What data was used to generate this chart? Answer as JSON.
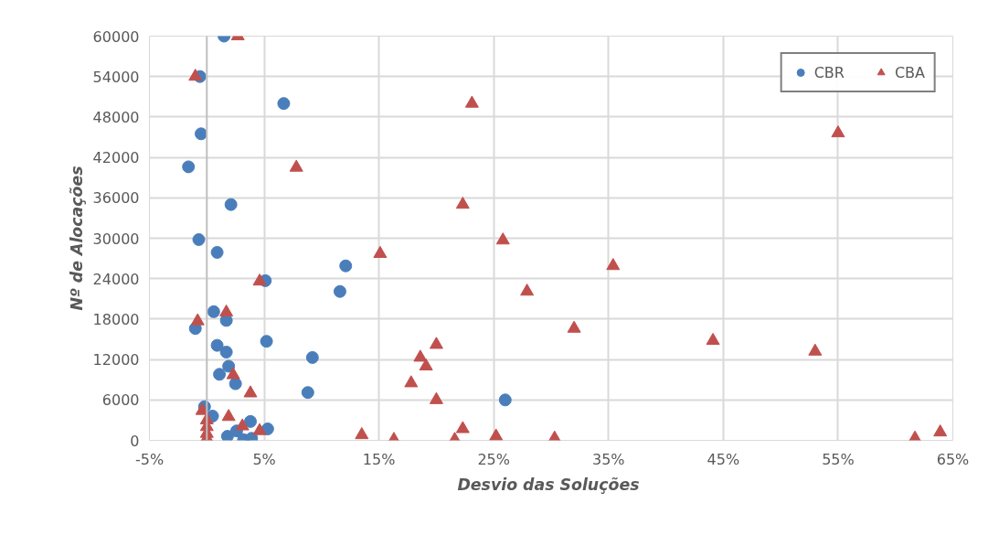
{
  "chart_data": {
    "type": "scatter",
    "xlabel": "Desvio  das Soluções",
    "ylabel": "Nº de Alocações",
    "xlim": [
      -5,
      65
    ],
    "ylim": [
      0,
      60000
    ],
    "xticks": [
      {
        "value": -5,
        "label": "-5%"
      },
      {
        "value": 5,
        "label": "5%"
      },
      {
        "value": 15,
        "label": "15%"
      },
      {
        "value": 25,
        "label": "25%"
      },
      {
        "value": 35,
        "label": "35%"
      },
      {
        "value": 45,
        "label": "45%"
      },
      {
        "value": 55,
        "label": "55%"
      },
      {
        "value": 65,
        "label": "65%"
      }
    ],
    "yticks": [
      0,
      6000,
      12000,
      18000,
      24000,
      30000,
      36000,
      42000,
      48000,
      54000,
      60000
    ],
    "grid": true,
    "legend": "top right",
    "series": [
      {
        "name": "CBR",
        "color": "#4a7ebb",
        "marker": "circle",
        "x": [
          1.5,
          -0.6,
          6.7,
          -0.5,
          -1.6,
          2.1,
          -0.7,
          0.9,
          12.1,
          5.1,
          11.6,
          0.6,
          1.7,
          -1.0,
          5.2,
          0.9,
          1.7,
          9.2,
          1.9,
          1.1,
          2.5,
          8.8,
          -0.2,
          0.5,
          3.8,
          5.3,
          1.8,
          2.6,
          3.2,
          3.9,
          26.0
        ],
        "values": [
          60000,
          54000,
          50000,
          45500,
          40600,
          35000,
          29800,
          27900,
          25900,
          23700,
          22100,
          19100,
          17800,
          16600,
          14700,
          14100,
          13100,
          12300,
          11000,
          9800,
          8400,
          7100,
          5000,
          3600,
          2800,
          1700,
          600,
          1400,
          100,
          300,
          6000
        ]
      },
      {
        "name": "CBA",
        "color": "#c0504d",
        "marker": "triangle",
        "x": [
          2.7,
          -1.0,
          7.8,
          15.1,
          4.6,
          1.7,
          -0.8,
          2.3,
          3.8,
          -0.4,
          1.9,
          3.1,
          4.6,
          0,
          0,
          0,
          0,
          13.5,
          16.3,
          23.1,
          22.3,
          25.8,
          35.4,
          27.9,
          32.0,
          20.0,
          18.6,
          19.1,
          17.8,
          20.0,
          22.3,
          21.6,
          25.2,
          30.3,
          55.0,
          44.1,
          53.0,
          61.7,
          63.9
        ],
        "values": [
          60000,
          54000,
          40500,
          27700,
          23600,
          19000,
          17700,
          9700,
          7000,
          4400,
          3500,
          2100,
          1400,
          3000,
          2000,
          1000,
          300,
          800,
          100,
          50000,
          35000,
          29700,
          25900,
          22100,
          16600,
          14200,
          12300,
          11000,
          8500,
          6000,
          1700,
          100,
          600,
          300,
          45600,
          14800,
          13200,
          300,
          1200
        ]
      }
    ]
  }
}
